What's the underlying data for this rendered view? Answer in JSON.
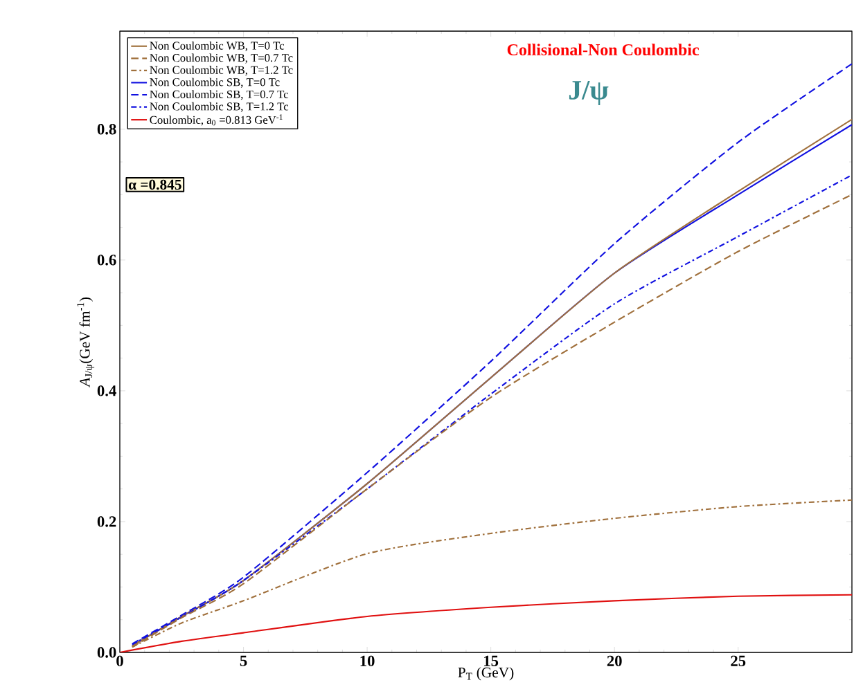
{
  "chart_data": {
    "type": "line",
    "xlabel": "P$_{T}$ (GeV)",
    "ylabel": "*A*$_{J/ψ}$(GeV fm$^{-1}$)",
    "xlim": [
      0,
      29.6
    ],
    "ylim": [
      0,
      0.95
    ],
    "xticks": [
      0,
      5,
      10,
      15,
      20,
      25
    ],
    "yticks": [
      {
        "value": 0,
        "label": "0.0"
      },
      0.2,
      0.4,
      0.6,
      0.8
    ],
    "legend": "top left",
    "grid": false,
    "marker": "none",
    "annotations": [
      "Collisional-Non Coulombic",
      "J/ψ",
      "α =0.845"
    ],
    "series": [
      {
        "name": "Non Coulombic WB, T=0 Tc",
        "color": "#a0703c",
        "line_style": "solid",
        "x": [
          0.5,
          2.5,
          5,
          10,
          15,
          20,
          25,
          29.6
        ],
        "values": [
          0.01,
          0.055,
          0.11,
          0.258,
          0.42,
          0.58,
          0.705,
          0.815
        ]
      },
      {
        "name": "Non Coulombic WB, T=0.7 Tc",
        "color": "#a0703c",
        "line_style": "dashed",
        "x": [
          0.5,
          2.5,
          5,
          10,
          15,
          20,
          25,
          29.6
        ],
        "values": [
          0.008,
          0.053,
          0.105,
          0.25,
          0.39,
          0.505,
          0.613,
          0.7
        ]
      },
      {
        "name": "Non Coulombic WB, T=1.2 Tc",
        "color": "#a0703c",
        "line_style": "dashdot",
        "x": [
          0.5,
          2.5,
          5,
          10,
          15,
          20,
          25,
          29.6
        ],
        "values": [
          0.008,
          0.045,
          0.079,
          0.151,
          0.182,
          0.205,
          0.223,
          0.233
        ]
      },
      {
        "name": "Non Coulombic SB, T=0 Tc",
        "color": "#1010e0",
        "line_style": "solid",
        "x": [
          0.5,
          2.5,
          5,
          10,
          15,
          20,
          25,
          29.6
        ],
        "values": [
          0.01,
          0.055,
          0.11,
          0.258,
          0.42,
          0.58,
          0.7,
          0.807
        ]
      },
      {
        "name": "Non Coulombic SB, T=0.7 Tc",
        "color": "#1010e0",
        "line_style": "dashed",
        "x": [
          0.5,
          2.5,
          5,
          10,
          15,
          20,
          25,
          29.6
        ],
        "values": [
          0.013,
          0.057,
          0.115,
          0.275,
          0.445,
          0.625,
          0.78,
          0.9
        ]
      },
      {
        "name": "Non Coulombic SB, T=1.2 Tc",
        "color": "#1010e0",
        "line_style": "dashdot",
        "x": [
          0.5,
          2.5,
          5,
          10,
          15,
          20,
          25,
          29.6
        ],
        "values": [
          0.012,
          0.054,
          0.11,
          0.25,
          0.395,
          0.533,
          0.636,
          0.73
        ]
      },
      {
        "name": "Coulombic, a$_{0}$ =0.813 GeV$^{-1}$",
        "color": "#e01010",
        "line_style": "solid",
        "x": [
          0,
          2.5,
          5,
          10,
          15,
          20,
          25,
          29.6
        ],
        "values": [
          0,
          0.017,
          0.03,
          0.055,
          0.069,
          0.079,
          0.086,
          0.088
        ]
      }
    ]
  }
}
